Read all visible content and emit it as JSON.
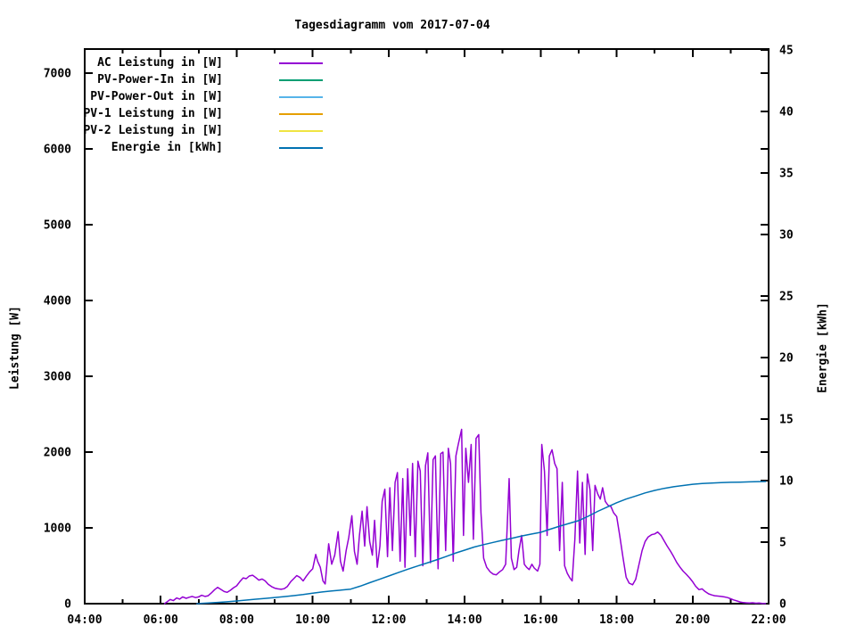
{
  "title": "Tagesdiagramm vom 2017-07-04",
  "chart_data": {
    "type": "line",
    "title": "Tagesdiagramm vom 2017-07-04",
    "grid": false,
    "legend_position": "top-left-inside",
    "x": {
      "unit": "time",
      "range_hours": [
        4,
        22
      ],
      "major_ticks": [
        {
          "h": 4,
          "label": "04:00"
        },
        {
          "h": 6,
          "label": "06:00"
        },
        {
          "h": 8,
          "label": "08:00"
        },
        {
          "h": 10,
          "label": "10:00"
        },
        {
          "h": 12,
          "label": "12:00"
        },
        {
          "h": 14,
          "label": "14:00"
        },
        {
          "h": 16,
          "label": "16:00"
        },
        {
          "h": 18,
          "label": "18:00"
        },
        {
          "h": 20,
          "label": "20:00"
        },
        {
          "h": 22,
          "label": "22:00"
        }
      ],
      "minor_tick_hours": [
        5,
        7,
        9,
        11,
        13,
        15,
        17,
        19,
        21
      ]
    },
    "y1": {
      "label": "Leistung [W]",
      "tick_values": [
        0,
        1000,
        2000,
        3000,
        4000,
        5000,
        6000,
        7000
      ],
      "range": [
        0,
        7320
      ]
    },
    "y2": {
      "label": "Energie [kWh]",
      "tick_values": [
        0,
        5,
        10,
        15,
        20,
        25,
        30,
        35,
        40,
        45
      ],
      "range": [
        0,
        45
      ]
    },
    "series": [
      {
        "name": "AC Leistung in [W]",
        "color": "#9400d3",
        "axis": "y1",
        "points": [
          [
            6.1,
            0
          ],
          [
            6.17,
            25
          ],
          [
            6.25,
            55
          ],
          [
            6.33,
            40
          ],
          [
            6.42,
            75
          ],
          [
            6.5,
            60
          ],
          [
            6.58,
            90
          ],
          [
            6.67,
            70
          ],
          [
            6.75,
            85
          ],
          [
            6.83,
            95
          ],
          [
            6.92,
            80
          ],
          [
            7.0,
            90
          ],
          [
            7.08,
            110
          ],
          [
            7.17,
            95
          ],
          [
            7.25,
            105
          ],
          [
            7.33,
            140
          ],
          [
            7.42,
            185
          ],
          [
            7.5,
            215
          ],
          [
            7.58,
            190
          ],
          [
            7.67,
            160
          ],
          [
            7.75,
            150
          ],
          [
            7.83,
            175
          ],
          [
            7.92,
            210
          ],
          [
            8.0,
            235
          ],
          [
            8.08,
            290
          ],
          [
            8.17,
            340
          ],
          [
            8.25,
            330
          ],
          [
            8.33,
            365
          ],
          [
            8.42,
            375
          ],
          [
            8.5,
            345
          ],
          [
            8.58,
            310
          ],
          [
            8.67,
            325
          ],
          [
            8.75,
            300
          ],
          [
            8.83,
            255
          ],
          [
            8.92,
            225
          ],
          [
            9.0,
            205
          ],
          [
            9.08,
            195
          ],
          [
            9.17,
            190
          ],
          [
            9.25,
            198
          ],
          [
            9.33,
            225
          ],
          [
            9.42,
            290
          ],
          [
            9.5,
            330
          ],
          [
            9.58,
            370
          ],
          [
            9.67,
            345
          ],
          [
            9.75,
            300
          ],
          [
            9.83,
            360
          ],
          [
            9.92,
            420
          ],
          [
            10.0,
            460
          ],
          [
            10.08,
            650
          ],
          [
            10.13,
            560
          ],
          [
            10.2,
            480
          ],
          [
            10.27,
            300
          ],
          [
            10.33,
            260
          ],
          [
            10.42,
            790
          ],
          [
            10.5,
            520
          ],
          [
            10.58,
            640
          ],
          [
            10.67,
            950
          ],
          [
            10.73,
            560
          ],
          [
            10.8,
            430
          ],
          [
            10.88,
            700
          ],
          [
            10.95,
            870
          ],
          [
            11.03,
            1160
          ],
          [
            11.1,
            690
          ],
          [
            11.17,
            520
          ],
          [
            11.23,
            900
          ],
          [
            11.3,
            1220
          ],
          [
            11.37,
            760
          ],
          [
            11.43,
            1280
          ],
          [
            11.5,
            820
          ],
          [
            11.57,
            640
          ],
          [
            11.63,
            1100
          ],
          [
            11.7,
            480
          ],
          [
            11.77,
            760
          ],
          [
            11.83,
            1350
          ],
          [
            11.9,
            1510
          ],
          [
            11.97,
            620
          ],
          [
            12.03,
            1530
          ],
          [
            12.1,
            700
          ],
          [
            12.17,
            1600
          ],
          [
            12.23,
            1730
          ],
          [
            12.3,
            560
          ],
          [
            12.37,
            1650
          ],
          [
            12.43,
            480
          ],
          [
            12.5,
            1780
          ],
          [
            12.57,
            900
          ],
          [
            12.63,
            1850
          ],
          [
            12.7,
            620
          ],
          [
            12.77,
            1880
          ],
          [
            12.83,
            1750
          ],
          [
            12.9,
            500
          ],
          [
            12.97,
            1820
          ],
          [
            13.03,
            1990
          ],
          [
            13.1,
            540
          ],
          [
            13.17,
            1900
          ],
          [
            13.23,
            1950
          ],
          [
            13.3,
            460
          ],
          [
            13.37,
            1980
          ],
          [
            13.43,
            2000
          ],
          [
            13.5,
            700
          ],
          [
            13.57,
            2050
          ],
          [
            13.63,
            1850
          ],
          [
            13.7,
            560
          ],
          [
            13.77,
            1950
          ],
          [
            13.83,
            2100
          ],
          [
            13.92,
            2300
          ],
          [
            13.97,
            900
          ],
          [
            14.03,
            2050
          ],
          [
            14.1,
            1600
          ],
          [
            14.17,
            2100
          ],
          [
            14.23,
            850
          ],
          [
            14.3,
            2180
          ],
          [
            14.37,
            2230
          ],
          [
            14.43,
            1200
          ],
          [
            14.5,
            600
          ],
          [
            14.58,
            480
          ],
          [
            14.67,
            420
          ],
          [
            14.75,
            390
          ],
          [
            14.83,
            380
          ],
          [
            14.92,
            420
          ],
          [
            15.0,
            450
          ],
          [
            15.08,
            520
          ],
          [
            15.17,
            1650
          ],
          [
            15.23,
            600
          ],
          [
            15.3,
            450
          ],
          [
            15.37,
            480
          ],
          [
            15.43,
            700
          ],
          [
            15.5,
            900
          ],
          [
            15.57,
            520
          ],
          [
            15.63,
            480
          ],
          [
            15.7,
            450
          ],
          [
            15.77,
            520
          ],
          [
            15.83,
            470
          ],
          [
            15.92,
            430
          ],
          [
            15.98,
            520
          ],
          [
            16.03,
            2100
          ],
          [
            16.1,
            1750
          ],
          [
            16.17,
            900
          ],
          [
            16.23,
            1950
          ],
          [
            16.3,
            2030
          ],
          [
            16.37,
            1850
          ],
          [
            16.43,
            1780
          ],
          [
            16.5,
            700
          ],
          [
            16.57,
            1600
          ],
          [
            16.63,
            500
          ],
          [
            16.7,
            400
          ],
          [
            16.77,
            340
          ],
          [
            16.83,
            300
          ],
          [
            16.9,
            850
          ],
          [
            16.97,
            1750
          ],
          [
            17.03,
            800
          ],
          [
            17.1,
            1600
          ],
          [
            17.17,
            650
          ],
          [
            17.23,
            1710
          ],
          [
            17.3,
            1500
          ],
          [
            17.37,
            700
          ],
          [
            17.43,
            1560
          ],
          [
            17.5,
            1450
          ],
          [
            17.57,
            1380
          ],
          [
            17.63,
            1530
          ],
          [
            17.7,
            1350
          ],
          [
            17.77,
            1300
          ],
          [
            17.85,
            1280
          ],
          [
            17.92,
            1200
          ],
          [
            18.0,
            1150
          ],
          [
            18.08,
            900
          ],
          [
            18.17,
            600
          ],
          [
            18.25,
            350
          ],
          [
            18.33,
            270
          ],
          [
            18.42,
            250
          ],
          [
            18.5,
            320
          ],
          [
            18.58,
            500
          ],
          [
            18.67,
            700
          ],
          [
            18.75,
            820
          ],
          [
            18.83,
            880
          ],
          [
            18.92,
            910
          ],
          [
            19.0,
            920
          ],
          [
            19.08,
            945
          ],
          [
            19.17,
            900
          ],
          [
            19.25,
            830
          ],
          [
            19.33,
            760
          ],
          [
            19.42,
            690
          ],
          [
            19.5,
            620
          ],
          [
            19.58,
            545
          ],
          [
            19.67,
            480
          ],
          [
            19.75,
            430
          ],
          [
            19.83,
            390
          ],
          [
            19.92,
            340
          ],
          [
            20.0,
            290
          ],
          [
            20.08,
            230
          ],
          [
            20.17,
            185
          ],
          [
            20.25,
            195
          ],
          [
            20.33,
            160
          ],
          [
            20.42,
            130
          ],
          [
            20.5,
            115
          ],
          [
            20.58,
            105
          ],
          [
            20.67,
            100
          ],
          [
            20.75,
            95
          ],
          [
            20.83,
            90
          ],
          [
            20.92,
            80
          ],
          [
            21.0,
            65
          ],
          [
            21.08,
            50
          ],
          [
            21.17,
            35
          ],
          [
            21.25,
            22
          ],
          [
            21.33,
            14
          ],
          [
            21.42,
            10
          ],
          [
            21.5,
            8
          ],
          [
            21.58,
            12
          ],
          [
            21.67,
            6
          ],
          [
            21.75,
            8
          ],
          [
            21.83,
            4
          ],
          [
            21.92,
            2
          ]
        ]
      },
      {
        "name": "PV-Power-In in [W]",
        "color": "#009e73",
        "axis": "y1",
        "points": []
      },
      {
        "name": "PV-Power-Out in [W]",
        "color": "#56b4e9",
        "axis": "y1",
        "points": []
      },
      {
        "name": "PV-1 Leistung in [W]",
        "color": "#e69f00",
        "axis": "y1",
        "points": []
      },
      {
        "name": "PV-2 Leistung in [W]",
        "color": "#f0e442",
        "axis": "y1",
        "points": []
      },
      {
        "name": "Energie in [kWh]",
        "color": "#0072b2",
        "axis": "y2",
        "points": [
          [
            6.95,
            0.0
          ],
          [
            7.25,
            0.05
          ],
          [
            7.5,
            0.1
          ],
          [
            7.75,
            0.15
          ],
          [
            8.0,
            0.22
          ],
          [
            8.25,
            0.29
          ],
          [
            8.5,
            0.36
          ],
          [
            8.75,
            0.43
          ],
          [
            9.0,
            0.5
          ],
          [
            9.25,
            0.57
          ],
          [
            9.5,
            0.65
          ],
          [
            9.75,
            0.74
          ],
          [
            10.0,
            0.85
          ],
          [
            10.25,
            0.95
          ],
          [
            10.5,
            1.03
          ],
          [
            10.75,
            1.1
          ],
          [
            11.0,
            1.18
          ],
          [
            11.25,
            1.42
          ],
          [
            11.5,
            1.7
          ],
          [
            11.75,
            1.97
          ],
          [
            12.0,
            2.25
          ],
          [
            12.25,
            2.52
          ],
          [
            12.5,
            2.8
          ],
          [
            12.75,
            3.05
          ],
          [
            13.0,
            3.3
          ],
          [
            13.25,
            3.55
          ],
          [
            13.5,
            3.82
          ],
          [
            13.75,
            4.1
          ],
          [
            14.0,
            4.35
          ],
          [
            14.25,
            4.6
          ],
          [
            14.5,
            4.8
          ],
          [
            14.75,
            4.98
          ],
          [
            15.0,
            5.15
          ],
          [
            15.25,
            5.32
          ],
          [
            15.5,
            5.5
          ],
          [
            15.75,
            5.65
          ],
          [
            16.0,
            5.8
          ],
          [
            16.25,
            6.05
          ],
          [
            16.5,
            6.3
          ],
          [
            16.75,
            6.52
          ],
          [
            17.0,
            6.75
          ],
          [
            17.25,
            7.1
          ],
          [
            17.5,
            7.5
          ],
          [
            17.75,
            7.85
          ],
          [
            18.0,
            8.2
          ],
          [
            18.25,
            8.5
          ],
          [
            18.5,
            8.75
          ],
          [
            18.75,
            9.0
          ],
          [
            19.0,
            9.2
          ],
          [
            19.25,
            9.37
          ],
          [
            19.5,
            9.5
          ],
          [
            19.75,
            9.6
          ],
          [
            20.0,
            9.7
          ],
          [
            20.25,
            9.76
          ],
          [
            20.5,
            9.8
          ],
          [
            20.75,
            9.83
          ],
          [
            21.0,
            9.86
          ],
          [
            21.25,
            9.88
          ],
          [
            21.5,
            9.9
          ],
          [
            21.75,
            9.92
          ],
          [
            21.92,
            9.93
          ]
        ]
      }
    ]
  }
}
